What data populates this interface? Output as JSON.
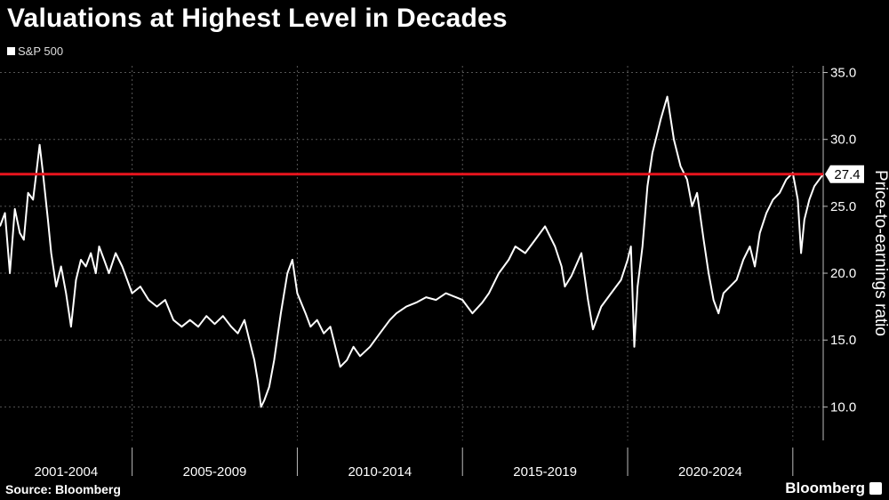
{
  "header": {
    "title": "Valuations at Highest Level in Decades"
  },
  "legend": {
    "series_label": "S&P 500"
  },
  "footer": {
    "source": "Source: Bloomberg",
    "brand": "Bloomberg"
  },
  "colors": {
    "background": "#000000",
    "line": "#ffffff",
    "reference_line": "#e8141d"
  },
  "chart_data": {
    "type": "line",
    "title": "Valuations at Highest Level in Decades",
    "ylabel": "Price-to-earnings ratio",
    "xlabel": "",
    "ylim": [
      7.5,
      35.5
    ],
    "y_ticks": [
      "10.0",
      "15.0",
      "20.0",
      "25.0",
      "30.0",
      "35.0"
    ],
    "y_tick_values": [
      10,
      15,
      20,
      25,
      30,
      35
    ],
    "x_range": [
      2001.0,
      2025.92
    ],
    "x_period_labels": [
      "2001-2004",
      "2005-2009",
      "2010-2014",
      "2015-2019",
      "2020-2024"
    ],
    "x_period_bounds": [
      [
        2001,
        2005
      ],
      [
        2005,
        2010
      ],
      [
        2010,
        2015
      ],
      [
        2015,
        2020
      ],
      [
        2020,
        2025
      ]
    ],
    "grid": true,
    "legend_position": "top-left",
    "reference_line": {
      "value": 27.4,
      "label": "27.4"
    },
    "series": [
      {
        "name": "S&P 500",
        "x": [
          2001.0,
          2001.15,
          2001.3,
          2001.45,
          2001.6,
          2001.72,
          2001.85,
          2002.0,
          2002.1,
          2002.2,
          2002.3,
          2002.45,
          2002.55,
          2002.7,
          2002.85,
          2003.0,
          2003.15,
          2003.3,
          2003.45,
          2003.6,
          2003.75,
          2003.9,
          2004.0,
          2004.15,
          2004.3,
          2004.5,
          2004.7,
          2004.85,
          2005.0,
          2005.25,
          2005.5,
          2005.75,
          2006.0,
          2006.25,
          2006.5,
          2006.75,
          2007.0,
          2007.25,
          2007.5,
          2007.75,
          2008.0,
          2008.2,
          2008.4,
          2008.55,
          2008.7,
          2008.8,
          2008.9,
          2009.0,
          2009.15,
          2009.3,
          2009.5,
          2009.7,
          2009.85,
          2010.0,
          2010.25,
          2010.4,
          2010.6,
          2010.8,
          2011.0,
          2011.3,
          2011.5,
          2011.7,
          2011.9,
          2012.2,
          2012.5,
          2012.8,
          2013.0,
          2013.3,
          2013.6,
          2013.9,
          2014.2,
          2014.5,
          2014.8,
          2015.0,
          2015.3,
          2015.6,
          2015.8,
          2016.1,
          2016.4,
          2016.6,
          2016.9,
          2017.2,
          2017.5,
          2017.8,
          2018.0,
          2018.1,
          2018.3,
          2018.6,
          2018.8,
          2018.95,
          2019.2,
          2019.5,
          2019.8,
          2020.0,
          2020.1,
          2020.2,
          2020.3,
          2020.45,
          2020.6,
          2020.75,
          2020.9,
          2021.0,
          2021.2,
          2021.4,
          2021.6,
          2021.8,
          2021.95,
          2022.1,
          2022.3,
          2022.45,
          2022.6,
          2022.75,
          2022.9,
          2023.1,
          2023.3,
          2023.5,
          2023.7,
          2023.85,
          2024.0,
          2024.2,
          2024.4,
          2024.6,
          2024.8,
          2025.0,
          2025.15,
          2025.25,
          2025.35,
          2025.5,
          2025.65,
          2025.8,
          2025.92
        ],
        "values": [
          23.5,
          24.5,
          20.0,
          24.8,
          23.0,
          22.5,
          26.0,
          25.5,
          27.5,
          29.6,
          27.5,
          24.0,
          21.5,
          19.0,
          20.5,
          18.5,
          16.0,
          19.5,
          21.0,
          20.5,
          21.5,
          20.0,
          22.0,
          21.0,
          20.0,
          21.5,
          20.5,
          19.5,
          18.5,
          19.0,
          18.0,
          17.5,
          18.0,
          16.5,
          16.0,
          16.5,
          16.0,
          16.8,
          16.2,
          16.8,
          16.0,
          15.5,
          16.5,
          15.0,
          13.5,
          12.0,
          10.0,
          10.5,
          11.5,
          13.5,
          17.0,
          20.0,
          21.0,
          18.5,
          17.0,
          16.0,
          16.5,
          15.5,
          16.0,
          13.0,
          13.5,
          14.5,
          13.8,
          14.5,
          15.5,
          16.5,
          17.0,
          17.5,
          17.8,
          18.2,
          18.0,
          18.5,
          18.2,
          18.0,
          17.0,
          17.8,
          18.5,
          20.0,
          21.0,
          22.0,
          21.5,
          22.5,
          23.5,
          22.0,
          20.5,
          19.0,
          19.8,
          21.5,
          18.0,
          15.8,
          17.5,
          18.5,
          19.5,
          21.0,
          22.0,
          14.5,
          19.0,
          22.0,
          26.5,
          29.0,
          30.5,
          31.5,
          33.2,
          30.0,
          28.0,
          27.0,
          25.0,
          26.0,
          22.5,
          20.0,
          18.0,
          17.0,
          18.5,
          19.0,
          19.5,
          21.0,
          22.0,
          20.5,
          23.0,
          24.5,
          25.5,
          26.0,
          27.0,
          27.5,
          25.5,
          21.5,
          24.0,
          25.5,
          26.5,
          27.0,
          27.4
        ]
      }
    ]
  }
}
